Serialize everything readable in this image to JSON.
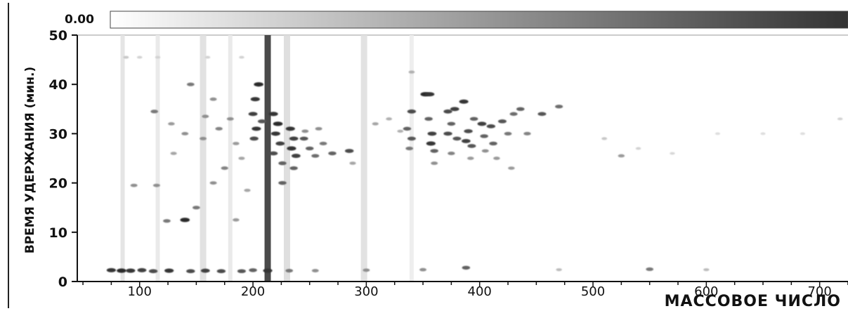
{
  "chart_data": {
    "type": "heatmap",
    "title": "",
    "xlabel": "МАССОВОЕ ЧИСЛО",
    "ylabel": "ВРЕМЯ УДЕРЖАНИЯ (мин.)",
    "xlim": [
      45,
      725
    ],
    "ylim": [
      0,
      50
    ],
    "x_ticks": [
      100,
      200,
      300,
      400,
      500,
      600,
      700
    ],
    "x_tick_labels": [
      "100",
      "200",
      "300",
      "400",
      "500",
      "600",
      "700"
    ],
    "y_ticks": [
      0,
      10,
      20,
      30,
      40,
      50
    ],
    "y_tick_labels": [
      "0",
      "10",
      "20",
      "30",
      "40",
      "50"
    ],
    "color_scale": {
      "min_label": "0.00",
      "low_color": "#ffffff",
      "high_color": "#333333"
    },
    "grid": false,
    "streaks": [
      {
        "x": 213,
        "intensity": 0.85,
        "width": 3
      },
      {
        "x": 85,
        "intensity": 0.12,
        "width": 2
      },
      {
        "x": 116,
        "intensity": 0.1,
        "width": 2
      },
      {
        "x": 156,
        "intensity": 0.14,
        "width": 3
      },
      {
        "x": 180,
        "intensity": 0.1,
        "width": 2
      },
      {
        "x": 230,
        "intensity": 0.15,
        "width": 3
      },
      {
        "x": 298,
        "intensity": 0.14,
        "width": 3
      },
      {
        "x": 340,
        "intensity": 0.08,
        "width": 2
      }
    ],
    "points": [
      {
        "x": 75,
        "y": 2.3,
        "v": 0.9
      },
      {
        "x": 84,
        "y": 2.2,
        "v": 0.95
      },
      {
        "x": 92,
        "y": 2.2,
        "v": 0.9
      },
      {
        "x": 102,
        "y": 2.3,
        "v": 0.85
      },
      {
        "x": 112,
        "y": 2.1,
        "v": 0.8
      },
      {
        "x": 126,
        "y": 2.2,
        "v": 0.9
      },
      {
        "x": 145,
        "y": 2.1,
        "v": 0.8
      },
      {
        "x": 158,
        "y": 2.2,
        "v": 0.85
      },
      {
        "x": 172,
        "y": 2.1,
        "v": 0.8
      },
      {
        "x": 190,
        "y": 2.1,
        "v": 0.75
      },
      {
        "x": 200,
        "y": 2.3,
        "v": 0.7
      },
      {
        "x": 213,
        "y": 2.2,
        "v": 0.9
      },
      {
        "x": 232,
        "y": 2.2,
        "v": 0.6
      },
      {
        "x": 255,
        "y": 2.2,
        "v": 0.5
      },
      {
        "x": 300,
        "y": 2.3,
        "v": 0.5
      },
      {
        "x": 350,
        "y": 2.4,
        "v": 0.5
      },
      {
        "x": 388,
        "y": 2.8,
        "v": 0.7
      },
      {
        "x": 470,
        "y": 2.4,
        "v": 0.3
      },
      {
        "x": 550,
        "y": 2.5,
        "v": 0.6
      },
      {
        "x": 600,
        "y": 2.4,
        "v": 0.3
      },
      {
        "x": 205,
        "y": 40,
        "v": 0.95
      },
      {
        "x": 202,
        "y": 37,
        "v": 0.9
      },
      {
        "x": 200,
        "y": 34,
        "v": 0.85
      },
      {
        "x": 203,
        "y": 31,
        "v": 0.9
      },
      {
        "x": 201,
        "y": 29,
        "v": 0.8
      },
      {
        "x": 208,
        "y": 32.5,
        "v": 0.75
      },
      {
        "x": 218,
        "y": 34,
        "v": 0.9
      },
      {
        "x": 222,
        "y": 32,
        "v": 0.95
      },
      {
        "x": 220,
        "y": 30,
        "v": 0.9
      },
      {
        "x": 224,
        "y": 28,
        "v": 0.85
      },
      {
        "x": 218,
        "y": 26,
        "v": 0.8
      },
      {
        "x": 226,
        "y": 24,
        "v": 0.7
      },
      {
        "x": 233,
        "y": 31,
        "v": 0.9
      },
      {
        "x": 236,
        "y": 29,
        "v": 0.85
      },
      {
        "x": 234,
        "y": 27,
        "v": 0.9
      },
      {
        "x": 238,
        "y": 25.5,
        "v": 0.85
      },
      {
        "x": 236,
        "y": 23,
        "v": 0.7
      },
      {
        "x": 245,
        "y": 29,
        "v": 0.75
      },
      {
        "x": 250,
        "y": 27,
        "v": 0.7
      },
      {
        "x": 255,
        "y": 25.5,
        "v": 0.65
      },
      {
        "x": 262,
        "y": 28,
        "v": 0.6
      },
      {
        "x": 270,
        "y": 26,
        "v": 0.7
      },
      {
        "x": 285,
        "y": 26.5,
        "v": 0.8
      },
      {
        "x": 288,
        "y": 24,
        "v": 0.4
      },
      {
        "x": 246,
        "y": 30.5,
        "v": 0.5
      },
      {
        "x": 258,
        "y": 31,
        "v": 0.5
      },
      {
        "x": 226,
        "y": 20,
        "v": 0.7
      },
      {
        "x": 140,
        "y": 12.5,
        "v": 0.95
      },
      {
        "x": 124,
        "y": 12.3,
        "v": 0.6
      },
      {
        "x": 150,
        "y": 15,
        "v": 0.6
      },
      {
        "x": 165,
        "y": 20,
        "v": 0.5
      },
      {
        "x": 175,
        "y": 23,
        "v": 0.55
      },
      {
        "x": 185,
        "y": 12.5,
        "v": 0.45
      },
      {
        "x": 115,
        "y": 19.5,
        "v": 0.5
      },
      {
        "x": 95,
        "y": 19.5,
        "v": 0.5
      },
      {
        "x": 145,
        "y": 40,
        "v": 0.6
      },
      {
        "x": 165,
        "y": 37,
        "v": 0.5
      },
      {
        "x": 113,
        "y": 34.5,
        "v": 0.6
      },
      {
        "x": 128,
        "y": 32,
        "v": 0.45
      },
      {
        "x": 140,
        "y": 30,
        "v": 0.5
      },
      {
        "x": 156,
        "y": 29,
        "v": 0.5
      },
      {
        "x": 170,
        "y": 31,
        "v": 0.55
      },
      {
        "x": 185,
        "y": 28,
        "v": 0.45
      },
      {
        "x": 190,
        "y": 25,
        "v": 0.4
      },
      {
        "x": 180,
        "y": 33,
        "v": 0.5
      },
      {
        "x": 130,
        "y": 26,
        "v": 0.4
      },
      {
        "x": 195,
        "y": 18.5,
        "v": 0.4
      },
      {
        "x": 158,
        "y": 33.5,
        "v": 0.5
      },
      {
        "x": 352,
        "y": 38,
        "v": 0.95
      },
      {
        "x": 356,
        "y": 38,
        "v": 0.9
      },
      {
        "x": 340,
        "y": 34.5,
        "v": 0.8
      },
      {
        "x": 336,
        "y": 31,
        "v": 0.7
      },
      {
        "x": 340,
        "y": 29,
        "v": 0.75
      },
      {
        "x": 338,
        "y": 27,
        "v": 0.6
      },
      {
        "x": 355,
        "y": 33,
        "v": 0.7
      },
      {
        "x": 358,
        "y": 30,
        "v": 0.85
      },
      {
        "x": 357,
        "y": 28,
        "v": 0.9
      },
      {
        "x": 360,
        "y": 26.5,
        "v": 0.7
      },
      {
        "x": 372,
        "y": 34.5,
        "v": 0.8
      },
      {
        "x": 378,
        "y": 35,
        "v": 0.85
      },
      {
        "x": 375,
        "y": 32,
        "v": 0.7
      },
      {
        "x": 372,
        "y": 30,
        "v": 0.8
      },
      {
        "x": 380,
        "y": 29,
        "v": 0.75
      },
      {
        "x": 386,
        "y": 36.5,
        "v": 0.9
      },
      {
        "x": 390,
        "y": 30.5,
        "v": 0.8
      },
      {
        "x": 388,
        "y": 28.5,
        "v": 0.85
      },
      {
        "x": 393,
        "y": 27.5,
        "v": 0.75
      },
      {
        "x": 395,
        "y": 33,
        "v": 0.7
      },
      {
        "x": 402,
        "y": 32,
        "v": 0.85
      },
      {
        "x": 410,
        "y": 31.5,
        "v": 0.8
      },
      {
        "x": 404,
        "y": 29.5,
        "v": 0.7
      },
      {
        "x": 412,
        "y": 28,
        "v": 0.7
      },
      {
        "x": 420,
        "y": 32.5,
        "v": 0.75
      },
      {
        "x": 425,
        "y": 30,
        "v": 0.6
      },
      {
        "x": 430,
        "y": 34,
        "v": 0.65
      },
      {
        "x": 436,
        "y": 35,
        "v": 0.7
      },
      {
        "x": 442,
        "y": 30,
        "v": 0.55
      },
      {
        "x": 455,
        "y": 34,
        "v": 0.75
      },
      {
        "x": 470,
        "y": 35.5,
        "v": 0.65
      },
      {
        "x": 360,
        "y": 24,
        "v": 0.5
      },
      {
        "x": 375,
        "y": 26,
        "v": 0.55
      },
      {
        "x": 392,
        "y": 25,
        "v": 0.45
      },
      {
        "x": 405,
        "y": 26.5,
        "v": 0.5
      },
      {
        "x": 415,
        "y": 25,
        "v": 0.45
      },
      {
        "x": 428,
        "y": 23,
        "v": 0.45
      },
      {
        "x": 340,
        "y": 42.5,
        "v": 0.35
      },
      {
        "x": 308,
        "y": 32,
        "v": 0.4
      },
      {
        "x": 320,
        "y": 33,
        "v": 0.35
      },
      {
        "x": 330,
        "y": 30.5,
        "v": 0.35
      },
      {
        "x": 525,
        "y": 25.5,
        "v": 0.45
      },
      {
        "x": 510,
        "y": 29,
        "v": 0.25
      },
      {
        "x": 540,
        "y": 27,
        "v": 0.2
      },
      {
        "x": 570,
        "y": 26,
        "v": 0.18
      },
      {
        "x": 610,
        "y": 30,
        "v": 0.15
      },
      {
        "x": 650,
        "y": 30,
        "v": 0.15
      },
      {
        "x": 685,
        "y": 30,
        "v": 0.15
      },
      {
        "x": 718,
        "y": 33,
        "v": 0.2
      },
      {
        "x": 88,
        "y": 45.5,
        "v": 0.25
      },
      {
        "x": 100,
        "y": 45.5,
        "v": 0.2
      },
      {
        "x": 116,
        "y": 45.5,
        "v": 0.2
      },
      {
        "x": 160,
        "y": 45.5,
        "v": 0.2
      },
      {
        "x": 190,
        "y": 45.5,
        "v": 0.2
      }
    ]
  }
}
